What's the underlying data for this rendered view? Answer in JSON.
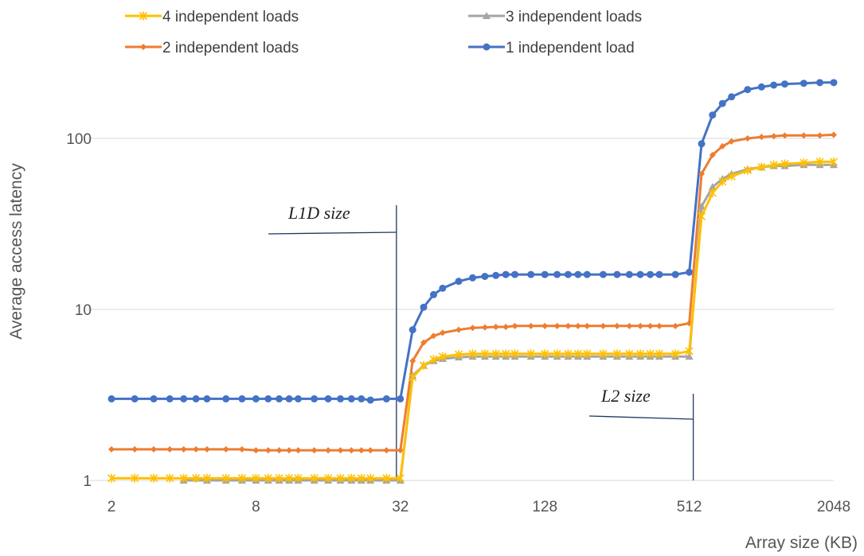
{
  "chart_data": {
    "type": "line",
    "title": "",
    "xlabel": "Array size (KB)",
    "ylabel": "Average access latency",
    "yscale": "log",
    "ylim": [
      1,
      200
    ],
    "xscale": "log2",
    "xlim": [
      2,
      2048
    ],
    "x_ticks": [
      "2",
      "8",
      "32",
      "128",
      "512",
      "2048"
    ],
    "y_ticks": [
      "1",
      "10",
      "100"
    ],
    "grid": "horizontal",
    "legend_position": "top",
    "annotations": [
      {
        "text": "L1D size",
        "x": 32,
        "y": 30
      },
      {
        "text": "L2 size",
        "x": 512,
        "y": 2.2
      }
    ],
    "series": [
      {
        "name": "4 independent loads",
        "color": "#FFC000",
        "marker": "star",
        "points": [
          [
            2,
            1.03
          ],
          [
            2.5,
            1.03
          ],
          [
            3,
            1.03
          ],
          [
            3.5,
            1.03
          ],
          [
            4,
            1.03
          ],
          [
            4.5,
            1.03
          ],
          [
            5,
            1.03
          ],
          [
            6,
            1.03
          ],
          [
            7,
            1.03
          ],
          [
            8,
            1.03
          ],
          [
            9,
            1.03
          ],
          [
            10,
            1.03
          ],
          [
            11,
            1.03
          ],
          [
            12,
            1.03
          ],
          [
            14,
            1.03
          ],
          [
            16,
            1.03
          ],
          [
            18,
            1.03
          ],
          [
            20,
            1.03
          ],
          [
            22,
            1.03
          ],
          [
            24,
            1.03
          ],
          [
            28,
            1.03
          ],
          [
            32,
            1.03
          ],
          [
            36,
            4.0
          ],
          [
            40,
            4.7
          ],
          [
            44,
            5.1
          ],
          [
            48,
            5.3
          ],
          [
            56,
            5.45
          ],
          [
            64,
            5.5
          ],
          [
            72,
            5.5
          ],
          [
            80,
            5.5
          ],
          [
            88,
            5.5
          ],
          [
            96,
            5.5
          ],
          [
            112,
            5.5
          ],
          [
            128,
            5.5
          ],
          [
            144,
            5.5
          ],
          [
            160,
            5.5
          ],
          [
            176,
            5.5
          ],
          [
            192,
            5.5
          ],
          [
            224,
            5.5
          ],
          [
            256,
            5.5
          ],
          [
            288,
            5.5
          ],
          [
            320,
            5.5
          ],
          [
            352,
            5.5
          ],
          [
            384,
            5.5
          ],
          [
            448,
            5.5
          ],
          [
            512,
            5.7
          ],
          [
            576,
            35
          ],
          [
            640,
            48
          ],
          [
            704,
            56
          ],
          [
            768,
            60
          ],
          [
            896,
            65
          ],
          [
            1024,
            68
          ],
          [
            1152,
            70
          ],
          [
            1280,
            71
          ],
          [
            1536,
            72
          ],
          [
            1792,
            73
          ],
          [
            2048,
            73
          ]
        ]
      },
      {
        "name": "3 independent loads",
        "color": "#A5A5A5",
        "marker": "triangle",
        "points": [
          [
            4,
            1.0
          ],
          [
            5,
            1.0
          ],
          [
            6,
            1.0
          ],
          [
            7,
            1.0
          ],
          [
            8,
            1.0
          ],
          [
            9,
            1.0
          ],
          [
            10,
            1.0
          ],
          [
            11,
            1.0
          ],
          [
            12,
            1.0
          ],
          [
            14,
            1.0
          ],
          [
            16,
            1.0
          ],
          [
            18,
            1.0
          ],
          [
            20,
            1.0
          ],
          [
            22,
            1.0
          ],
          [
            24,
            1.0
          ],
          [
            28,
            1.0
          ],
          [
            32,
            1.0
          ],
          [
            36,
            4.1
          ],
          [
            40,
            4.7
          ],
          [
            44,
            5.0
          ],
          [
            48,
            5.15
          ],
          [
            56,
            5.25
          ],
          [
            64,
            5.3
          ],
          [
            72,
            5.3
          ],
          [
            80,
            5.3
          ],
          [
            88,
            5.3
          ],
          [
            96,
            5.3
          ],
          [
            112,
            5.3
          ],
          [
            128,
            5.3
          ],
          [
            144,
            5.3
          ],
          [
            160,
            5.3
          ],
          [
            176,
            5.3
          ],
          [
            192,
            5.3
          ],
          [
            224,
            5.3
          ],
          [
            256,
            5.3
          ],
          [
            288,
            5.3
          ],
          [
            320,
            5.3
          ],
          [
            352,
            5.3
          ],
          [
            384,
            5.3
          ],
          [
            448,
            5.3
          ],
          [
            512,
            5.3
          ],
          [
            576,
            40
          ],
          [
            640,
            52
          ],
          [
            704,
            58
          ],
          [
            768,
            62
          ],
          [
            896,
            66
          ],
          [
            1024,
            68
          ],
          [
            1152,
            69
          ],
          [
            1280,
            69
          ],
          [
            1536,
            70
          ],
          [
            1792,
            70
          ],
          [
            2048,
            70
          ]
        ]
      },
      {
        "name": "2 independent loads",
        "color": "#ED7D31",
        "marker": "diamond",
        "points": [
          [
            2,
            1.52
          ],
          [
            2.5,
            1.52
          ],
          [
            3,
            1.52
          ],
          [
            3.5,
            1.52
          ],
          [
            4,
            1.52
          ],
          [
            4.5,
            1.52
          ],
          [
            5,
            1.52
          ],
          [
            6,
            1.52
          ],
          [
            7,
            1.52
          ],
          [
            8,
            1.5
          ],
          [
            9,
            1.5
          ],
          [
            10,
            1.5
          ],
          [
            11,
            1.5
          ],
          [
            12,
            1.5
          ],
          [
            14,
            1.5
          ],
          [
            16,
            1.5
          ],
          [
            18,
            1.5
          ],
          [
            20,
            1.5
          ],
          [
            22,
            1.5
          ],
          [
            24,
            1.5
          ],
          [
            28,
            1.5
          ],
          [
            32,
            1.5
          ],
          [
            36,
            5.0
          ],
          [
            40,
            6.4
          ],
          [
            44,
            7.0
          ],
          [
            48,
            7.3
          ],
          [
            56,
            7.6
          ],
          [
            64,
            7.8
          ],
          [
            72,
            7.85
          ],
          [
            80,
            7.9
          ],
          [
            88,
            7.9
          ],
          [
            96,
            8.0
          ],
          [
            112,
            8.0
          ],
          [
            128,
            8.0
          ],
          [
            144,
            8.0
          ],
          [
            160,
            8.0
          ],
          [
            176,
            8.0
          ],
          [
            192,
            8.0
          ],
          [
            224,
            8.0
          ],
          [
            256,
            8.0
          ],
          [
            288,
            8.0
          ],
          [
            320,
            8.0
          ],
          [
            352,
            8.0
          ],
          [
            384,
            8.0
          ],
          [
            448,
            8.0
          ],
          [
            512,
            8.3
          ],
          [
            576,
            62
          ],
          [
            640,
            80
          ],
          [
            704,
            90
          ],
          [
            768,
            96
          ],
          [
            896,
            100
          ],
          [
            1024,
            102
          ],
          [
            1152,
            103
          ],
          [
            1280,
            104
          ],
          [
            1536,
            104
          ],
          [
            1792,
            104
          ],
          [
            2048,
            105
          ]
        ]
      },
      {
        "name": "1 independent load",
        "color": "#4472C4",
        "marker": "circle",
        "points": [
          [
            2,
            3.0
          ],
          [
            2.5,
            3.0
          ],
          [
            3,
            3.0
          ],
          [
            3.5,
            3.0
          ],
          [
            4,
            3.0
          ],
          [
            4.5,
            3.0
          ],
          [
            5,
            3.0
          ],
          [
            6,
            3.0
          ],
          [
            7,
            3.0
          ],
          [
            8,
            3.0
          ],
          [
            9,
            3.0
          ],
          [
            10,
            3.0
          ],
          [
            11,
            3.0
          ],
          [
            12,
            3.0
          ],
          [
            14,
            3.0
          ],
          [
            16,
            3.0
          ],
          [
            18,
            3.0
          ],
          [
            20,
            3.0
          ],
          [
            22,
            3.0
          ],
          [
            24,
            2.95
          ],
          [
            28,
            3.0
          ],
          [
            32,
            3.0
          ],
          [
            36,
            7.6
          ],
          [
            40,
            10.3
          ],
          [
            44,
            12.2
          ],
          [
            48,
            13.3
          ],
          [
            56,
            14.6
          ],
          [
            64,
            15.3
          ],
          [
            72,
            15.6
          ],
          [
            80,
            15.8
          ],
          [
            88,
            16.0
          ],
          [
            96,
            16.0
          ],
          [
            112,
            16.0
          ],
          [
            128,
            16.0
          ],
          [
            144,
            16.0
          ],
          [
            160,
            16.0
          ],
          [
            176,
            16.0
          ],
          [
            192,
            16.0
          ],
          [
            224,
            16.0
          ],
          [
            256,
            16.0
          ],
          [
            288,
            16.0
          ],
          [
            320,
            16.0
          ],
          [
            352,
            16.0
          ],
          [
            384,
            16.0
          ],
          [
            448,
            16.0
          ],
          [
            512,
            16.5
          ],
          [
            576,
            93
          ],
          [
            640,
            137
          ],
          [
            704,
            160
          ],
          [
            768,
            175
          ],
          [
            896,
            193
          ],
          [
            1024,
            200
          ],
          [
            1152,
            205
          ],
          [
            1280,
            208
          ],
          [
            1536,
            210
          ],
          [
            1792,
            212
          ],
          [
            2048,
            212
          ]
        ]
      }
    ]
  }
}
